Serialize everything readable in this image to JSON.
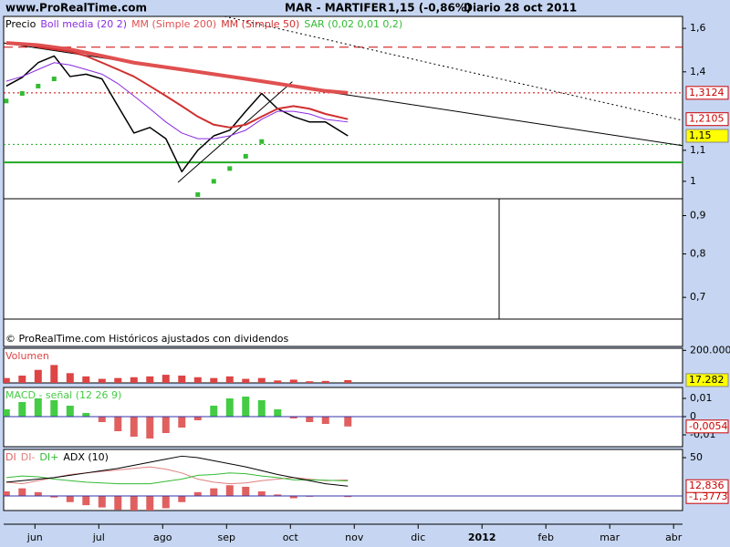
{
  "header": {
    "site": "www.ProRealTime.com",
    "symbol": "MAR - MARTIFER",
    "quote": "1,15 (-0,86%)",
    "period": "Diario  28 oct 2011"
  },
  "chart_data": [
    {
      "type": "line",
      "log": true,
      "note": "© ProRealTime.com Históricos ajustados con dividendos",
      "x": [
        -0.45,
        -0.2,
        0.05,
        0.3,
        0.55,
        0.8,
        1.05,
        1.3,
        1.55,
        1.8,
        2.05,
        2.3,
        2.55,
        2.8,
        3.05,
        3.3,
        3.55,
        3.8,
        4.05,
        4.3,
        4.55,
        4.9
      ],
      "xlim": [
        -0.49,
        10.14
      ],
      "ylim": [
        0.602,
        1.66
      ],
      "yticks": [
        {
          "value": 1.6,
          "label": "1,6"
        },
        {
          "value": 1.4,
          "label": "1,4"
        },
        {
          "value": 1.1,
          "label": "1,1"
        },
        1,
        {
          "value": 0.9,
          "label": "0,9"
        },
        {
          "value": 0.8,
          "label": "0,8"
        },
        {
          "value": 0.7,
          "label": "0,7"
        }
      ],
      "levels": [
        {
          "value": 1.51,
          "color": "#cc0000",
          "style": "dashed"
        },
        {
          "value": 1.3124,
          "color": "#cc0000",
          "style": "dotted"
        },
        {
          "value": 1.12,
          "color": "#22aa22",
          "style": "dotted"
        },
        {
          "value": 1.06,
          "color": "#22aa22",
          "style": "solid"
        }
      ],
      "trendlines": [
        {
          "x": [
            -0.49,
            10.14
          ],
          "y": [
            1.53,
            1.116
          ],
          "style": "solid"
        },
        {
          "x": [
            2.97,
            10.14
          ],
          "y": [
            1.66,
            1.206
          ],
          "style": "dotted"
        },
        {
          "x": [
            2.24,
            4.03
          ],
          "y": [
            0.997,
            1.358
          ],
          "style": "solid"
        }
      ],
      "series": [
        {
          "name": "Precio",
          "type": "line",
          "color": "#000000",
          "width": 1.5,
          "values": [
            1.34,
            1.376,
            1.44,
            1.47,
            1.38,
            1.39,
            1.37,
            1.26,
            1.16,
            1.18,
            1.14,
            1.03,
            1.1,
            1.15,
            1.17,
            1.24,
            1.31,
            1.25,
            1.22,
            1.2,
            1.2,
            1.15
          ],
          "value_labels": [
            null,
            null,
            null,
            null,
            null,
            null,
            null,
            null,
            null,
            null,
            null,
            null,
            null,
            null,
            null,
            null,
            null,
            null,
            null,
            null,
            null,
            "1,15"
          ],
          "label_fill": "#ffff00",
          "label_color": "#000000"
        },
        {
          "name": "Boll media (20 2)",
          "type": "line",
          "color": "#8a2be2",
          "width": 1,
          "values": [
            1.36,
            1.38,
            1.41,
            1.44,
            1.43,
            1.41,
            1.39,
            1.35,
            1.3,
            1.25,
            1.2,
            1.16,
            1.14,
            1.14,
            1.15,
            1.17,
            1.21,
            1.24,
            1.24,
            1.23,
            1.21,
            1.2
          ]
        },
        {
          "name": "MM (Simple 200)",
          "type": "line",
          "color": "#e05050",
          "width": 4,
          "values": [
            1.53,
            1.525,
            1.52,
            1.51,
            1.5,
            1.485,
            1.47,
            1.455,
            1.44,
            1.43,
            1.42,
            1.41,
            1.4,
            1.39,
            1.38,
            1.37,
            1.36,
            1.35,
            1.34,
            1.33,
            1.32,
            1.3124
          ],
          "value_labels": [
            null,
            null,
            null,
            null,
            null,
            null,
            null,
            null,
            null,
            null,
            null,
            null,
            null,
            null,
            null,
            null,
            null,
            null,
            null,
            null,
            null,
            "1,3124"
          ],
          "label_fill": "#ffffff",
          "label_color": "#cc0000"
        },
        {
          "name": "MM (Simple 50)",
          "type": "line",
          "color": "#d03030",
          "width": 2,
          "values": [
            null,
            null,
            1.51,
            1.5,
            1.49,
            1.47,
            1.44,
            1.41,
            1.38,
            1.34,
            1.3,
            1.26,
            1.22,
            1.19,
            1.18,
            1.19,
            1.22,
            1.25,
            1.26,
            1.25,
            1.23,
            1.2105
          ],
          "value_labels": [
            null,
            null,
            null,
            null,
            null,
            null,
            null,
            null,
            null,
            null,
            null,
            null,
            null,
            null,
            null,
            null,
            null,
            null,
            null,
            null,
            null,
            "1,2105"
          ],
          "label_fill": "#ffffff",
          "label_color": "#cc0000"
        },
        {
          "name": "SAR (0,02 0,01 0,2)",
          "type": "dots",
          "color": "#33bb33",
          "values": [
            1.28,
            1.31,
            1.34,
            1.37,
            null,
            null,
            null,
            null,
            null,
            null,
            null,
            null,
            0.96,
            1.0,
            1.04,
            1.08,
            1.13,
            null,
            null,
            null,
            null,
            null
          ]
        }
      ]
    },
    {
      "type": "bar",
      "x": [
        -0.45,
        -0.2,
        0.05,
        0.3,
        0.55,
        0.8,
        1.05,
        1.3,
        1.55,
        1.8,
        2.05,
        2.3,
        2.55,
        2.8,
        3.05,
        3.3,
        3.55,
        3.8,
        4.05,
        4.3,
        4.55,
        4.9
      ],
      "xlim": [
        -0.49,
        10.14
      ],
      "ylim": [
        0,
        213000
      ],
      "yticks": [
        {
          "value": 200000,
          "label": "200.000"
        }
      ],
      "series": [
        {
          "name": "Volumen",
          "type": "bar",
          "color": "#dd4444",
          "values": [
            30000,
            45000,
            80000,
            110000,
            60000,
            40000,
            25000,
            30000,
            35000,
            40000,
            50000,
            45000,
            35000,
            30000,
            40000,
            25000,
            30000,
            15000,
            20000,
            10000,
            12000,
            17282
          ],
          "value_labels": [
            null,
            null,
            null,
            null,
            null,
            null,
            null,
            null,
            null,
            null,
            null,
            null,
            null,
            null,
            null,
            null,
            null,
            null,
            null,
            null,
            null,
            "17.282"
          ],
          "label_fill": "#ffff00",
          "label_color": "#000000"
        }
      ]
    },
    {
      "type": "bar",
      "baseline_color": "#3333aa",
      "x": [
        -0.45,
        -0.2,
        0.05,
        0.3,
        0.55,
        0.8,
        1.05,
        1.3,
        1.55,
        1.8,
        2.05,
        2.3,
        2.55,
        2.8,
        3.05,
        3.3,
        3.55,
        3.8,
        4.05,
        4.3,
        4.55,
        4.9
      ],
      "xlim": [
        -0.49,
        10.14
      ],
      "ylim": [
        -0.0165,
        0.016
      ],
      "yticks": [
        {
          "value": 0.01,
          "label": "0,01"
        },
        0,
        {
          "value": -0.01,
          "label": "-0,01"
        }
      ],
      "series": [
        {
          "name": "MACD - señal (12 26 9)",
          "type": "bar",
          "color": "#44cc44",
          "negative_color": "#e06060",
          "values": [
            0.004,
            0.008,
            0.01,
            0.009,
            0.006,
            0.002,
            -0.003,
            -0.008,
            -0.011,
            -0.012,
            -0.009,
            -0.006,
            -0.002,
            0.006,
            0.01,
            0.011,
            0.009,
            0.004,
            -0.001,
            -0.003,
            -0.004,
            -0.0054
          ],
          "value_labels": [
            null,
            null,
            null,
            null,
            null,
            null,
            null,
            null,
            null,
            null,
            null,
            null,
            null,
            null,
            null,
            null,
            null,
            null,
            null,
            null,
            null,
            "-0,0054"
          ],
          "label_fill": "#ffffff",
          "label_color": "#cc0000"
        }
      ]
    },
    {
      "type": "bar",
      "baseline_color": "#3333aa",
      "x": [
        -0.45,
        -0.2,
        0.05,
        0.3,
        0.55,
        0.8,
        1.05,
        1.3,
        1.55,
        1.8,
        2.05,
        2.3,
        2.55,
        2.8,
        3.05,
        3.3,
        3.55,
        3.8,
        4.05,
        4.3,
        4.55,
        4.9
      ],
      "xlim": [
        -0.49,
        10.14
      ],
      "ylim": [
        -19,
        60.7
      ],
      "yticks": [
        50
      ],
      "xticks": [
        {
          "value": 0,
          "label": "jun"
        },
        {
          "value": 1,
          "label": "jul"
        },
        {
          "value": 2,
          "label": "ago"
        },
        {
          "value": 3,
          "label": "sep"
        },
        {
          "value": 4,
          "label": "oct"
        },
        {
          "value": 5,
          "label": "nov"
        },
        {
          "value": 6,
          "label": "dic"
        },
        {
          "value": 7,
          "label": "2012",
          "emphasis": true
        },
        {
          "value": 8,
          "label": "feb"
        },
        {
          "value": 9,
          "label": "mar"
        },
        {
          "value": 10,
          "label": "abr"
        }
      ],
      "series": [
        {
          "name": "DI",
          "type": "bar",
          "color": "#e06060",
          "negative_color": "#e06060",
          "values": [
            6,
            10,
            5,
            -2,
            -8,
            -12,
            -15,
            -18,
            -20,
            -22,
            -16,
            -8,
            5,
            10,
            14,
            12,
            6,
            2,
            -3,
            -1,
            0.5,
            -1.3773
          ],
          "value_labels": [
            null,
            null,
            null,
            null,
            null,
            null,
            null,
            null,
            null,
            null,
            null,
            null,
            null,
            null,
            null,
            null,
            null,
            null,
            null,
            null,
            null,
            "-1,3773"
          ],
          "label_fill": "#ffffff",
          "label_color": "#cc0000"
        },
        {
          "name": "DI-",
          "type": "line",
          "color": "#e08080",
          "width": 1,
          "values": [
            18,
            16,
            20,
            24,
            28,
            30,
            32,
            34,
            36,
            38,
            35,
            30,
            22,
            18,
            16,
            17,
            20,
            22,
            24,
            22,
            20,
            21
          ]
        },
        {
          "name": "DI+",
          "type": "line",
          "color": "#33bb33",
          "width": 1,
          "values": [
            24,
            26,
            25,
            22,
            20,
            18,
            17,
            16,
            16,
            16,
            19,
            22,
            27,
            28,
            30,
            29,
            26,
            24,
            21,
            21,
            20.5,
            19.6
          ]
        },
        {
          "name": "ADX (10)",
          "type": "line",
          "color": "#000000",
          "width": 1,
          "values": [
            18,
            20,
            22,
            24,
            27,
            30,
            33,
            36,
            40,
            44,
            48,
            52,
            50,
            46,
            42,
            38,
            33,
            28,
            24,
            20,
            16,
            12.836
          ],
          "value_labels": [
            null,
            null,
            null,
            null,
            null,
            null,
            null,
            null,
            null,
            null,
            null,
            null,
            null,
            null,
            null,
            null,
            null,
            null,
            null,
            null,
            null,
            "12,836"
          ],
          "label_fill": "#ffffff",
          "label_color": "#cc0000"
        }
      ]
    }
  ]
}
